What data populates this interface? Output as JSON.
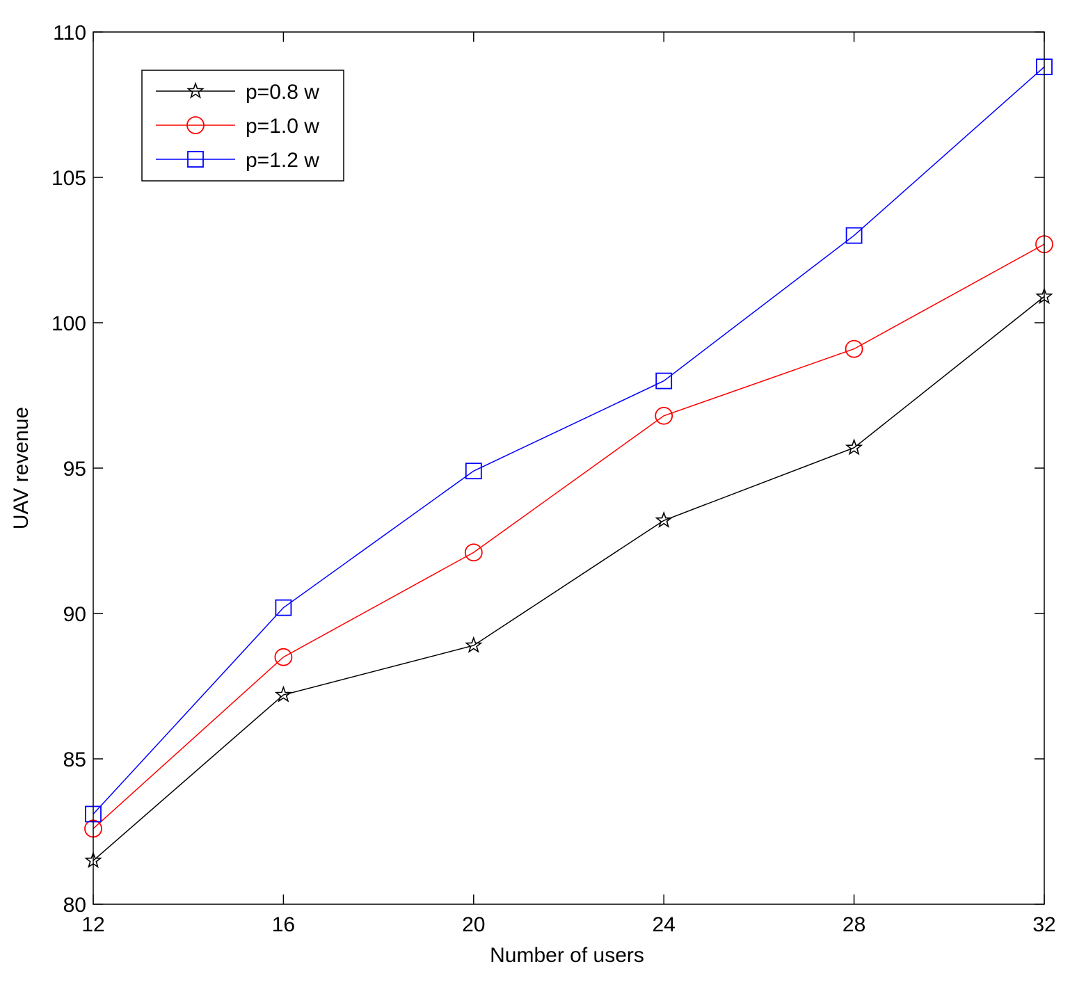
{
  "chart_data": {
    "type": "line",
    "title": "",
    "xlabel": "Number of users",
    "ylabel": "UAV revenue",
    "x": [
      12,
      16,
      20,
      24,
      28,
      32
    ],
    "xlim": [
      12,
      32
    ],
    "ylim": [
      80,
      110
    ],
    "xticks": [
      12,
      16,
      20,
      24,
      28,
      32
    ],
    "yticks": [
      80,
      85,
      90,
      95,
      100,
      105,
      110
    ],
    "grid": false,
    "legend_position": "top-left",
    "series": [
      {
        "name": "p=0.8 w",
        "color": "#000000",
        "marker": "star-icon",
        "values": [
          81.5,
          87.2,
          88.9,
          93.2,
          95.7,
          100.9
        ]
      },
      {
        "name": "p=1.0 w",
        "color": "#ff0000",
        "marker": "circle-icon",
        "values": [
          82.6,
          88.5,
          92.1,
          96.8,
          99.1,
          102.7
        ]
      },
      {
        "name": "p=1.2 w",
        "color": "#0000ff",
        "marker": "square-icon",
        "values": [
          83.1,
          90.2,
          94.9,
          98.0,
          103.0,
          108.8
        ]
      }
    ]
  }
}
